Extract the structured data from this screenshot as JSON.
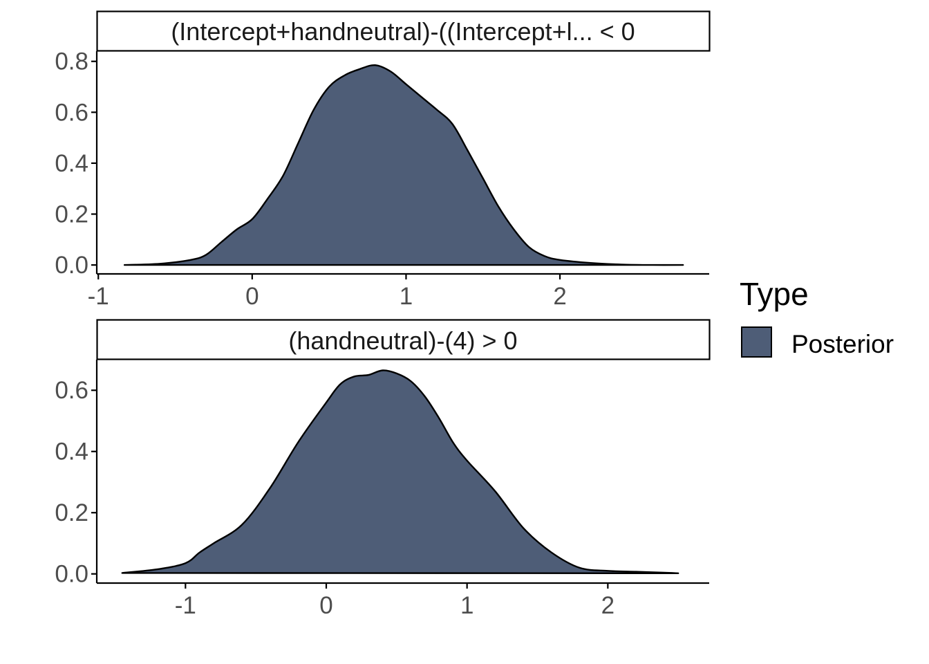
{
  "legend": {
    "title": "Type",
    "items": [
      {
        "label": "Posterior",
        "color": "#4e5d77"
      }
    ]
  },
  "colors": {
    "fill": "#4e5d77",
    "outline": "#000000",
    "axis": "#000000",
    "tick_text": "#4d4d4d"
  },
  "chart_data": [
    {
      "type": "area",
      "title": "(Intercept+handneutral)-((Intercept+l... < 0",
      "xlabel": "",
      "ylabel": "",
      "xlim": [
        -1.01,
        2.97
      ],
      "ylim": [
        -0.035,
        0.84
      ],
      "x_ticks": [
        -1,
        0,
        1,
        2
      ],
      "x_tick_labels": [
        "-1",
        "0",
        "1",
        "2"
      ],
      "y_ticks": [
        0.0,
        0.2,
        0.4,
        0.6,
        0.8
      ],
      "y_tick_labels": [
        "0.0",
        "0.2",
        "0.4",
        "0.6",
        "0.8"
      ],
      "grid": false,
      "series": [
        {
          "name": "Posterior",
          "x": [
            -0.83,
            -0.6,
            -0.4,
            -0.3,
            -0.2,
            -0.1,
            0.0,
            0.1,
            0.2,
            0.3,
            0.4,
            0.5,
            0.6,
            0.7,
            0.8,
            0.9,
            1.0,
            1.1,
            1.2,
            1.3,
            1.4,
            1.5,
            1.6,
            1.7,
            1.8,
            1.9,
            2.0,
            2.2,
            2.4,
            2.6,
            2.8
          ],
          "y": [
            0.0,
            0.005,
            0.02,
            0.04,
            0.09,
            0.14,
            0.18,
            0.26,
            0.35,
            0.48,
            0.61,
            0.7,
            0.745,
            0.77,
            0.785,
            0.76,
            0.71,
            0.66,
            0.61,
            0.555,
            0.45,
            0.34,
            0.23,
            0.14,
            0.07,
            0.035,
            0.02,
            0.008,
            0.002,
            0.0,
            0.0
          ]
        }
      ]
    },
    {
      "type": "area",
      "title": "(handneutral)-(4) > 0",
      "xlabel": "",
      "ylabel": "",
      "xlim": [
        -1.63,
        2.72
      ],
      "ylim": [
        -0.03,
        0.7
      ],
      "x_ticks": [
        -1,
        0,
        1,
        2
      ],
      "x_tick_labels": [
        "-1",
        "0",
        "1",
        "2"
      ],
      "y_ticks": [
        0.0,
        0.2,
        0.4,
        0.6
      ],
      "y_tick_labels": [
        "0.0",
        "0.2",
        "0.4",
        "0.6"
      ],
      "grid": false,
      "series": [
        {
          "name": "Posterior",
          "x": [
            -1.45,
            -1.2,
            -1.0,
            -0.9,
            -0.8,
            -0.6,
            -0.4,
            -0.2,
            0.0,
            0.1,
            0.2,
            0.3,
            0.4,
            0.5,
            0.6,
            0.7,
            0.8,
            0.9,
            1.0,
            1.2,
            1.4,
            1.6,
            1.8,
            2.0,
            2.2,
            2.4,
            2.5
          ],
          "y": [
            0.003,
            0.015,
            0.035,
            0.07,
            0.1,
            0.16,
            0.28,
            0.43,
            0.56,
            0.62,
            0.645,
            0.65,
            0.665,
            0.655,
            0.63,
            0.58,
            0.51,
            0.43,
            0.37,
            0.27,
            0.15,
            0.07,
            0.02,
            0.01,
            0.007,
            0.004,
            0.002
          ]
        }
      ]
    }
  ]
}
